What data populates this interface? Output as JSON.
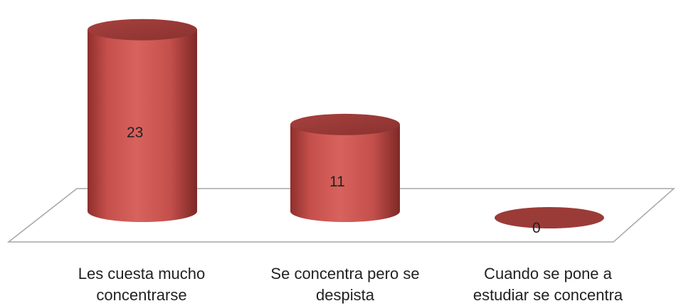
{
  "chart_data": {
    "type": "bar",
    "style": "3d-cylinder",
    "categories": [
      "Les cuesta mucho concentrarse",
      "Se concentra pero se despista",
      "Cuando se pone a estudiar se concentra"
    ],
    "values": [
      23,
      11,
      0
    ],
    "data_labels": [
      "23",
      "11",
      "0"
    ],
    "ylim": [
      0,
      23
    ],
    "grid": false,
    "legend": "none",
    "colors": {
      "bar": "#c0504d",
      "bar_top": "#9b3b38",
      "floor_line": "#a6a6a6",
      "text": "#222222"
    }
  },
  "labels": {
    "cat0_line1": "Les cuesta mucho",
    "cat0_line2": "concentrarse",
    "cat1_line1": "Se concentra pero se",
    "cat1_line2": "despista",
    "cat2_line1": "Cuando se pone a",
    "cat2_line2": "estudiar se concentra"
  }
}
